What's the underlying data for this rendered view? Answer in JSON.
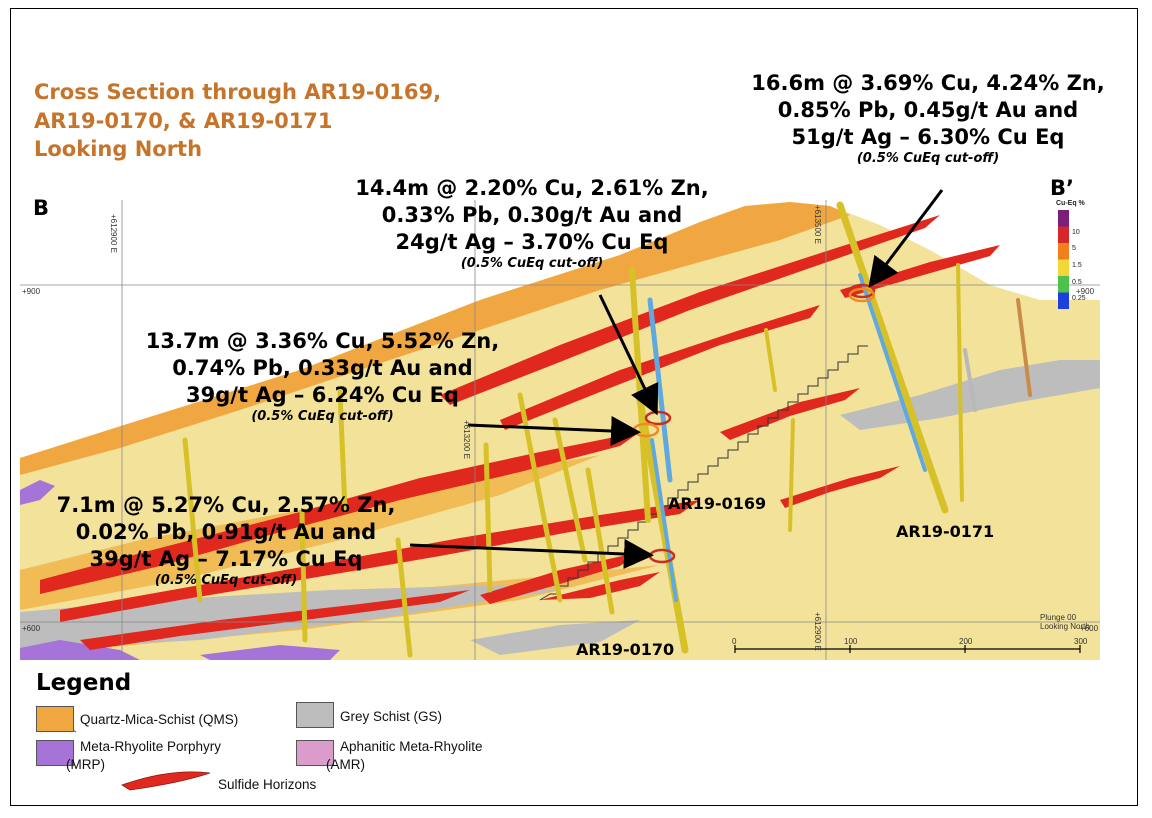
{
  "title": {
    "line1": "Cross Section through AR19-0169,",
    "line2": "AR19-0170, & AR19-0171",
    "line3": "Looking North"
  },
  "section_labels": {
    "left": "B",
    "right": "B’"
  },
  "annotations": [
    {
      "id": "a171",
      "line1": "16.6m @ 3.69% Cu, 4.24% Zn,",
      "line2": "0.85% Pb, 0.45g/t Au and",
      "line3": "51g/t Ag – 6.30% Cu Eq",
      "cutoff": "(0.5% CuEq cut-off)"
    },
    {
      "id": "a169a",
      "line1": "14.4m @ 2.20% Cu, 2.61% Zn,",
      "line2": "0.33% Pb, 0.30g/t Au and",
      "line3": "24g/t Ag – 3.70% Cu Eq",
      "cutoff": "(0.5% CuEq cut-off)"
    },
    {
      "id": "a169b",
      "line1": "13.7m @ 3.36% Cu, 5.52% Zn,",
      "line2": "0.74% Pb, 0.33g/t Au and",
      "line3": "39g/t Ag – 6.24% Cu Eq",
      "cutoff": "(0.5% CuEq cut-off)"
    },
    {
      "id": "a170",
      "line1": "7.1m @ 5.27% Cu, 2.57% Zn,",
      "line2": "0.02% Pb, 0.91g/t Au and",
      "line3": "39g/t Ag – 7.17% Cu Eq",
      "cutoff": "(0.5% CuEq cut-off)"
    }
  ],
  "drillholes": {
    "h169": "AR19-0169",
    "h170": "AR19-0170",
    "h171": "AR19-0171"
  },
  "color_bar": {
    "title": "Cu-Eq %",
    "ticks": [
      "10",
      "5",
      "1.5",
      "0.5",
      "0.25"
    ],
    "colors": [
      "#7a1f7a",
      "#d6282b",
      "#f07f1e",
      "#f2d63a",
      "#4cc24a",
      "#1e3fe0"
    ]
  },
  "grid": {
    "e1": "+612900 E",
    "e2": "+613200 E",
    "e3": "+613500 E",
    "e4": "+612900 E",
    "elev_left_top": "+900",
    "elev_right_top": "+900",
    "elev_left_bot": "+600",
    "elev_right_bot": "+600"
  },
  "scale_bar": {
    "t0": "0",
    "t1": "100",
    "t2": "200",
    "t3": "300"
  },
  "plunge": {
    "line1": "Plunge 00",
    "line2": "Looking North"
  },
  "legend": {
    "title": "Legend",
    "items": [
      {
        "label": "Quartz-Mica-Schist (QMS)",
        "color": "#f0a741"
      },
      {
        "label": "Grey Schist (GS)",
        "color": "#bdbdbd"
      },
      {
        "label": "Meta-Rhyolite Porphyry",
        "label2": "(MRP)",
        "color": "#a673d8"
      },
      {
        "label": "Aphanitic Meta-Rhyolite",
        "label2": "(AMR)",
        "color": "#dc9ccb"
      },
      {
        "label": "Sulfide Horizons",
        "color": "#e0281e"
      }
    ]
  },
  "colors": {
    "title": "#c5742a",
    "qms_light": "#f3e29a",
    "qms_dark": "#f0a741",
    "sulfide": "#e0281e",
    "grey": "#b9b9b9"
  }
}
